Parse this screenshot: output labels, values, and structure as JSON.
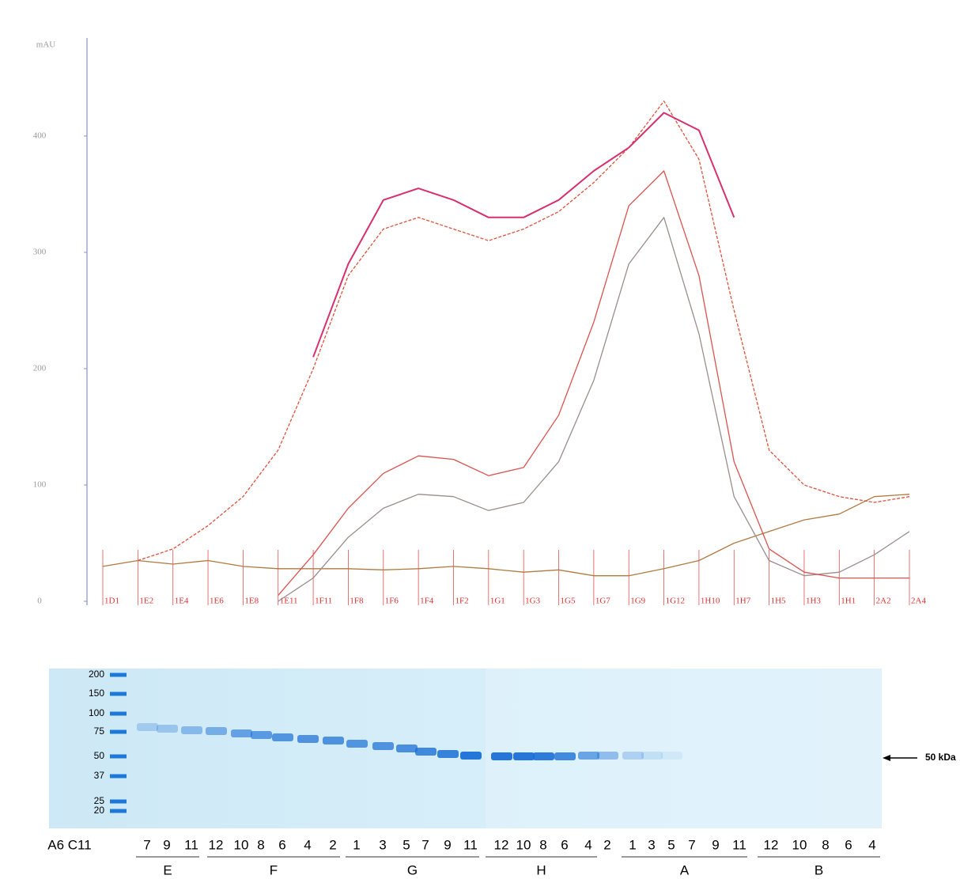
{
  "chart_data": {
    "type": "line",
    "y_label": "mAU",
    "ylim": [
      0,
      470
    ],
    "yticks": [
      0,
      100,
      200,
      300,
      400
    ],
    "categories": [
      "1D1",
      "1E2",
      "1E4",
      "1E6",
      "1E8",
      "1E11",
      "1F11",
      "1F8",
      "1F6",
      "1F4",
      "1F2",
      "1G1",
      "1G3",
      "1G5",
      "1G7",
      "1G9",
      "1G12",
      "1H10",
      "1H7",
      "1H5",
      "1H3",
      "1H1",
      "2A2",
      "2A4"
    ],
    "series": [
      {
        "color": "#b07a40",
        "values": [
          30,
          35,
          32,
          35,
          30,
          28,
          28,
          28,
          27,
          28,
          30,
          28,
          25,
          27,
          22,
          22,
          28,
          35,
          50,
          60,
          70,
          75,
          90,
          92
        ]
      },
      {
        "color": "#9a8d8d",
        "values": [
          null,
          null,
          null,
          null,
          null,
          0,
          20,
          55,
          80,
          92,
          90,
          78,
          85,
          120,
          190,
          290,
          330,
          230,
          90,
          35,
          22,
          25,
          40,
          60
        ]
      },
      {
        "color": "#d9534f",
        "values": [
          null,
          null,
          null,
          null,
          null,
          5,
          40,
          80,
          110,
          125,
          122,
          108,
          115,
          160,
          240,
          340,
          370,
          280,
          120,
          45,
          25,
          20,
          20,
          20
        ]
      },
      {
        "color": "#e0503a",
        "values": [
          null,
          35,
          45,
          65,
          90,
          130,
          200,
          280,
          320,
          330,
          320,
          310,
          320,
          335,
          360,
          390,
          430,
          380,
          250,
          130,
          100,
          90,
          85,
          90
        ]
      },
      {
        "color": "#d6306e",
        "values": [
          null,
          null,
          null,
          null,
          null,
          null,
          210,
          290,
          345,
          355,
          345,
          330,
          330,
          345,
          370,
          390,
          420,
          405,
          330,
          null,
          null,
          null,
          null,
          null
        ]
      }
    ]
  },
  "gel": {
    "markers": [
      200,
      150,
      100,
      75,
      50,
      37,
      25,
      20
    ],
    "arrow_label": "50 kDa",
    "sample_label": "A6 C11",
    "groups": [
      {
        "label": "E",
        "lanes": [
          7,
          9,
          11
        ]
      },
      {
        "label": "F",
        "lanes": [
          12,
          10,
          8,
          6,
          4,
          2
        ]
      },
      {
        "label": "G",
        "lanes": [
          1,
          3,
          5,
          7,
          9,
          11
        ]
      },
      {
        "label": "H",
        "lanes": [
          12,
          10,
          8,
          6,
          4,
          2
        ]
      },
      {
        "label": "A",
        "lanes": [
          1,
          3,
          5,
          7,
          9,
          11
        ]
      },
      {
        "label": "B",
        "lanes": [
          12,
          10,
          8,
          6,
          4
        ]
      }
    ]
  }
}
